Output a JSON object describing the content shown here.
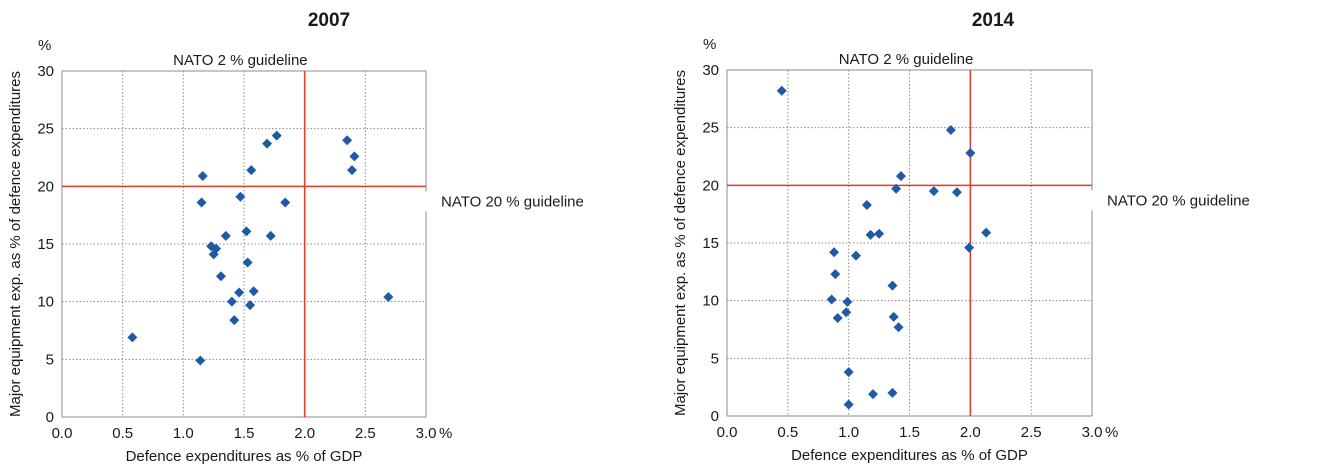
{
  "chart_data": [
    {
      "type": "scatter",
      "title": "2007",
      "xlabel": "Defence expenditures as % of GDP",
      "ylabel": "Major equipment exp. as % of defence expenditures",
      "x_unit": "%",
      "y_unit": "%",
      "xlim": [
        0,
        3
      ],
      "ylim": [
        0,
        30
      ],
      "x_ticks": [
        "0.0",
        "0.5",
        "1.0",
        "1.5",
        "2.0",
        "2.5",
        "3.0"
      ],
      "y_ticks": [
        "0",
        "5",
        "10",
        "15",
        "20",
        "25",
        "30"
      ],
      "grid": true,
      "marker_color": "#1f5aa6",
      "guideline_color": "#e8392b",
      "guidelines": [
        {
          "axis": "x",
          "value": 2.0,
          "label": "NATO 2 % guideline"
        },
        {
          "axis": "y",
          "value": 20,
          "label": "NATO 20 % guideline"
        }
      ],
      "points": [
        {
          "x": 0.58,
          "y": 6.9
        },
        {
          "x": 1.14,
          "y": 4.9
        },
        {
          "x": 1.15,
          "y": 18.6
        },
        {
          "x": 1.16,
          "y": 20.9
        },
        {
          "x": 1.23,
          "y": 14.8
        },
        {
          "x": 1.25,
          "y": 14.1
        },
        {
          "x": 1.27,
          "y": 14.6
        },
        {
          "x": 1.31,
          "y": 12.2
        },
        {
          "x": 1.35,
          "y": 15.7
        },
        {
          "x": 1.4,
          "y": 10.0
        },
        {
          "x": 1.42,
          "y": 8.4
        },
        {
          "x": 1.46,
          "y": 10.8
        },
        {
          "x": 1.47,
          "y": 19.1
        },
        {
          "x": 1.52,
          "y": 16.1
        },
        {
          "x": 1.53,
          "y": 13.4
        },
        {
          "x": 1.55,
          "y": 9.7
        },
        {
          "x": 1.56,
          "y": 21.4
        },
        {
          "x": 1.58,
          "y": 10.9
        },
        {
          "x": 1.69,
          "y": 23.7
        },
        {
          "x": 1.72,
          "y": 15.7
        },
        {
          "x": 1.77,
          "y": 24.4
        },
        {
          "x": 1.84,
          "y": 18.6
        },
        {
          "x": 2.35,
          "y": 24.0
        },
        {
          "x": 2.39,
          "y": 21.4
        },
        {
          "x": 2.41,
          "y": 22.6
        },
        {
          "x": 2.69,
          "y": 10.4
        }
      ]
    },
    {
      "type": "scatter",
      "title": "2014",
      "xlabel": "Defence expenditures as % of GDP",
      "ylabel": "Major equipment exp. as % of defence expenditures",
      "x_unit": "%",
      "y_unit": "%",
      "xlim": [
        0,
        3
      ],
      "ylim": [
        0,
        30
      ],
      "x_ticks": [
        "0.0",
        "0.5",
        "1.0",
        "1.5",
        "2.0",
        "2.5",
        "3.0"
      ],
      "y_ticks": [
        "0",
        "5",
        "10",
        "15",
        "20",
        "25",
        "30"
      ],
      "grid": true,
      "marker_color": "#1f5aa6",
      "guideline_color": "#e8392b",
      "guidelines": [
        {
          "axis": "x",
          "value": 2.0,
          "label": "NATO 2 % guideline"
        },
        {
          "axis": "y",
          "value": 20,
          "label": "NATO 20 % guideline"
        }
      ],
      "points": [
        {
          "x": 0.45,
          "y": 28.2
        },
        {
          "x": 0.86,
          "y": 10.1
        },
        {
          "x": 0.88,
          "y": 14.2
        },
        {
          "x": 0.89,
          "y": 12.3
        },
        {
          "x": 0.91,
          "y": 8.5
        },
        {
          "x": 0.98,
          "y": 9.0
        },
        {
          "x": 0.99,
          "y": 9.9
        },
        {
          "x": 1.0,
          "y": 3.8
        },
        {
          "x": 1.0,
          "y": 1.0
        },
        {
          "x": 1.06,
          "y": 13.9
        },
        {
          "x": 1.15,
          "y": 18.3
        },
        {
          "x": 1.18,
          "y": 15.7
        },
        {
          "x": 1.2,
          "y": 1.9
        },
        {
          "x": 1.25,
          "y": 15.8
        },
        {
          "x": 1.36,
          "y": 11.3
        },
        {
          "x": 1.36,
          "y": 2.0
        },
        {
          "x": 1.37,
          "y": 8.6
        },
        {
          "x": 1.39,
          "y": 19.7
        },
        {
          "x": 1.41,
          "y": 7.7
        },
        {
          "x": 1.43,
          "y": 20.8
        },
        {
          "x": 1.7,
          "y": 19.5
        },
        {
          "x": 1.84,
          "y": 24.8
        },
        {
          "x": 1.89,
          "y": 19.4
        },
        {
          "x": 1.99,
          "y": 14.6
        },
        {
          "x": 2.0,
          "y": 22.8
        },
        {
          "x": 2.13,
          "y": 15.9
        }
      ]
    }
  ]
}
